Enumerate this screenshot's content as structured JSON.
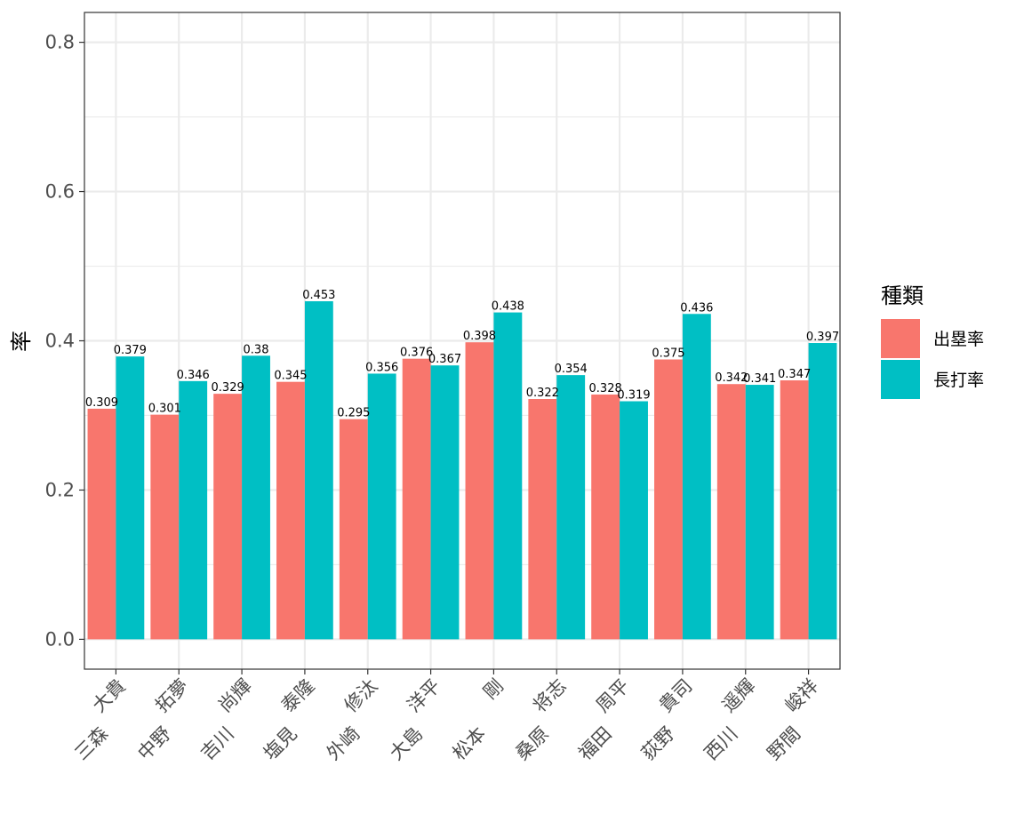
{
  "chart_data": {
    "type": "bar",
    "title": "",
    "xlabel": "",
    "ylabel": "率",
    "ylim": [
      -0.04,
      0.84
    ],
    "yticks": [
      0.0,
      0.2,
      0.4,
      0.6,
      0.8
    ],
    "ytick_labels": [
      "0.0",
      "0.2",
      "0.4",
      "0.6",
      "0.8"
    ],
    "grid": true,
    "legend": {
      "title": "種類",
      "position": "right"
    },
    "categories": [
      "三森　大貴",
      "中野　拓夢",
      "吉川　尚輝",
      "塩見　泰隆",
      "外崎　修汰",
      "大島　洋平",
      "松本　剛",
      "桑原　将志",
      "福田　周平",
      "荻野　貴司",
      "西川　遥輝",
      "野間　峻祥"
    ],
    "series": [
      {
        "name": "出塁率",
        "color": "#F8766D",
        "values": [
          0.309,
          0.301,
          0.329,
          0.345,
          0.295,
          0.376,
          0.398,
          0.322,
          0.328,
          0.375,
          0.342,
          0.347
        ],
        "labels": [
          "0.309",
          "0.301",
          "0.329",
          "0.345",
          "0.295",
          "0.376",
          "0.398",
          "0.322",
          "0.328",
          "0.375",
          "0.342",
          "0.347"
        ]
      },
      {
        "name": "長打率",
        "color": "#00BFC4",
        "values": [
          0.379,
          0.346,
          0.38,
          0.453,
          0.356,
          0.367,
          0.438,
          0.354,
          0.319,
          0.436,
          0.341,
          0.397
        ],
        "labels": [
          "0.379",
          "0.346",
          "0.38",
          "0.453",
          "0.356",
          "0.367",
          "0.438",
          "0.354",
          "0.319",
          "0.436",
          "0.341",
          "0.397"
        ]
      }
    ]
  }
}
